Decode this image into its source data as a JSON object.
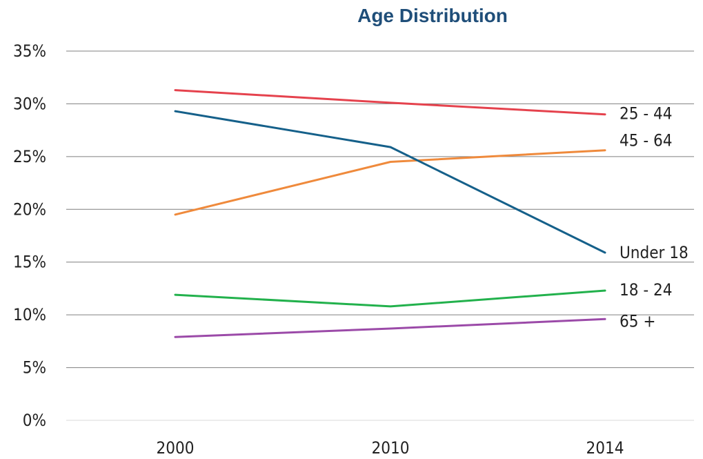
{
  "chart_data": {
    "type": "line",
    "title": "Age Distribution",
    "xlabel": "",
    "ylabel": "",
    "categories": [
      "2000",
      "2010",
      "2014"
    ],
    "ylim": [
      0,
      35
    ],
    "yticks": [
      0,
      5,
      10,
      15,
      20,
      25,
      30,
      35
    ],
    "ytick_format": "%",
    "grid": true,
    "legend": "inline-right",
    "series": [
      {
        "name": "25 - 44",
        "color": "#e5424d",
        "values": [
          31.3,
          30.1,
          29.0
        ]
      },
      {
        "name": "45 - 64",
        "color": "#ef8a3c",
        "values": [
          19.5,
          24.5,
          25.6
        ]
      },
      {
        "name": "Under 18",
        "color": "#15608a",
        "values": [
          29.3,
          25.9,
          15.9
        ]
      },
      {
        "name": "18 - 24",
        "color": "#22b14c",
        "values": [
          11.9,
          10.8,
          12.3
        ]
      },
      {
        "name": "65 +",
        "color": "#9b4aa8",
        "values": [
          7.9,
          8.7,
          9.6
        ]
      }
    ]
  }
}
